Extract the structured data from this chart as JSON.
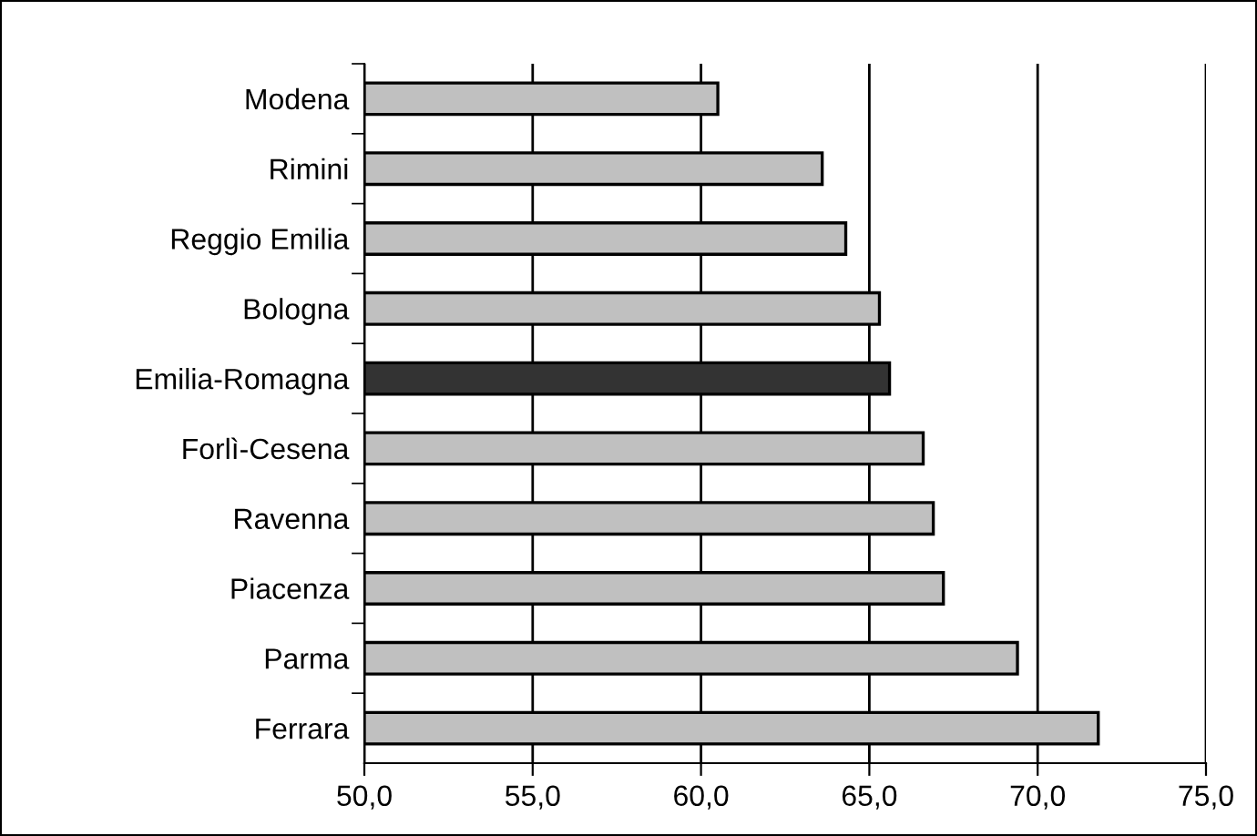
{
  "chart_data": {
    "type": "bar",
    "orientation": "horizontal",
    "categories": [
      "Modena",
      "Rimini",
      "Reggio Emilia",
      "Bologna",
      "Emilia-Romagna",
      "Forlì-Cesena",
      "Ravenna",
      "Piacenza",
      "Parma",
      "Ferrara"
    ],
    "values": [
      60.5,
      63.6,
      64.3,
      65.3,
      65.6,
      66.6,
      66.9,
      67.2,
      69.4,
      71.8
    ],
    "colors": [
      "#c0c0c0",
      "#c0c0c0",
      "#c0c0c0",
      "#c0c0c0",
      "#333333",
      "#c0c0c0",
      "#c0c0c0",
      "#c0c0c0",
      "#c0c0c0",
      "#c0c0c0"
    ],
    "xlim": [
      50,
      75
    ],
    "xticks": [
      {
        "value": 50,
        "label": "50,0"
      },
      {
        "value": 55,
        "label": "55,0"
      },
      {
        "value": 60,
        "label": "60,0"
      },
      {
        "value": 65,
        "label": "65,0"
      },
      {
        "value": 70,
        "label": "70,0"
      },
      {
        "value": 75,
        "label": "75,0"
      }
    ],
    "grid": "x"
  }
}
